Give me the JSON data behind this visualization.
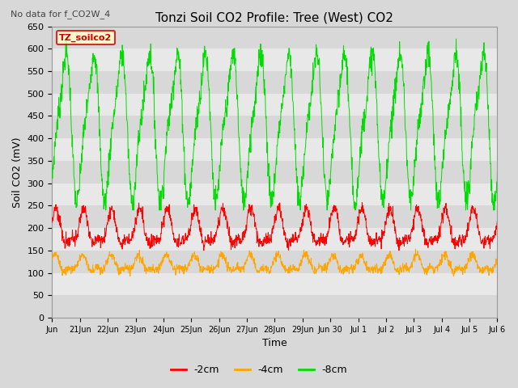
{
  "title": "Tonzi Soil CO2 Profile: Tree (West) CO2",
  "subtitle": "No data for f_CO2W_4",
  "xlabel": "Time",
  "ylabel": "Soil CO2 (mV)",
  "legend_label": "TZ_soilco2",
  "series_labels": [
    "-2cm",
    "-4cm",
    "-8cm"
  ],
  "series_colors": [
    "#ff0000",
    "#ffa500",
    "#00dd00"
  ],
  "ylim": [
    0,
    650
  ],
  "yticks": [
    0,
    50,
    100,
    150,
    200,
    250,
    300,
    350,
    400,
    450,
    500,
    550,
    600,
    650
  ],
  "fig_bg": "#e8e8e8",
  "plot_bg_light": "#e8e8e8",
  "plot_bg_dark": "#d0d0d0",
  "grid_color": "#ffffff",
  "legend_bg": "#ffffcc",
  "legend_edge": "#cc0000"
}
